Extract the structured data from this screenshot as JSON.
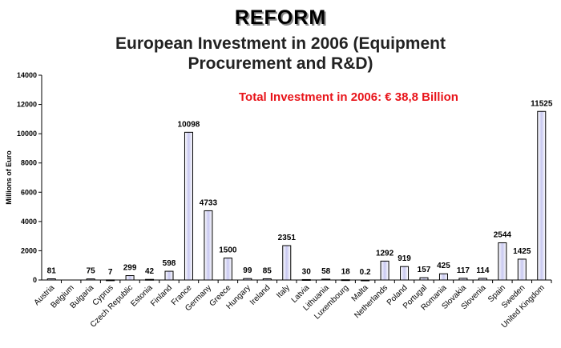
{
  "header": {
    "title": "REFORM",
    "subtitle_line1": "European Investment in 2006 (Equipment",
    "subtitle_line2": "Procurement and R&D)"
  },
  "chart_data": {
    "type": "bar",
    "title": "European Investment in 2006 (Equipment Procurement and R&D)",
    "ylabel": "Millions of Euro",
    "xlabel": "",
    "ylim": [
      0,
      14000
    ],
    "yticks": [
      0,
      2000,
      4000,
      6000,
      8000,
      10000,
      12000,
      14000
    ],
    "annotation": "Total Investment in 2006: € 38,8 Billion",
    "annotation_color": "#e8141a",
    "bar_color": "#c8c8f0",
    "categories": [
      "Austria",
      "Belgium",
      "Bulgaria",
      "Cyprus",
      "Czech Republic",
      "Estonia",
      "Finland",
      "France",
      "Germany",
      "Greece",
      "Hungary",
      "Ireland",
      "Italy",
      "Latvia",
      "Lithuania",
      "Luxembourg",
      "Malta",
      "Netherlands",
      "Poland",
      "Portugal",
      "Romania",
      "Slovakia",
      "Slovenia",
      "Spain",
      "Sweden",
      "United Kingdom"
    ],
    "values": [
      81,
      null,
      75,
      7,
      299,
      42,
      598,
      10098,
      4733,
      1500,
      99,
      85,
      2351,
      30,
      58,
      18,
      0.2,
      1292,
      919,
      157,
      425,
      117,
      114,
      2544,
      1425,
      11525
    ],
    "data_labels": [
      "81",
      "",
      "75",
      "7",
      "299",
      "42",
      "598",
      "10098",
      "4733",
      "1500",
      "99",
      "85",
      "2351",
      "30",
      "58",
      "18",
      "0.2",
      "1292",
      "919",
      "157",
      "425",
      "117",
      "114",
      "2544",
      "1425",
      "11525"
    ]
  }
}
